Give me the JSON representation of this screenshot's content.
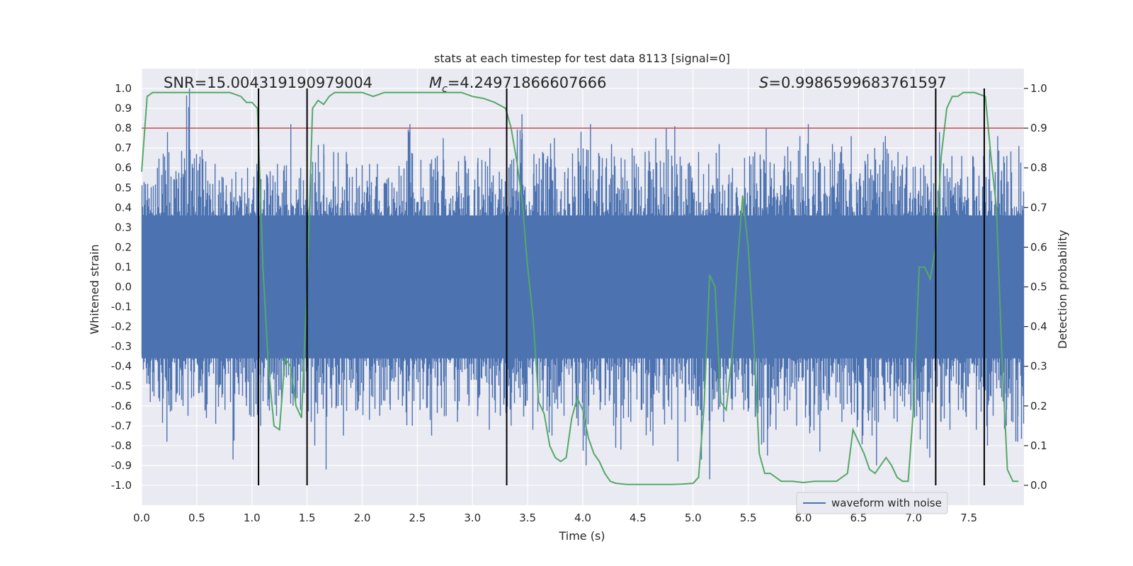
{
  "chart_data": {
    "type": "line",
    "title": "stats at each timestep for test data 8113 [signal=0]",
    "xlabel": "Time (s)",
    "ylabel": "Whitened strain",
    "y2label": "Detection probability",
    "xlim": [
      0.0,
      8.0
    ],
    "ylim": [
      -1.1,
      1.1
    ],
    "y2lim": [
      -0.05,
      1.05
    ],
    "xticks": [
      "0.0",
      "0.5",
      "1.0",
      "1.5",
      "2.0",
      "2.5",
      "3.0",
      "3.5",
      "4.0",
      "4.5",
      "5.0",
      "5.5",
      "6.0",
      "6.5",
      "7.0",
      "7.5"
    ],
    "yticks": [
      "-1.0",
      "-0.9",
      "-0.8",
      "-0.7",
      "-0.6",
      "-0.5",
      "-0.4",
      "-0.3",
      "-0.2",
      "-0.1",
      "0.0",
      "0.1",
      "0.2",
      "0.3",
      "0.4",
      "0.5",
      "0.6",
      "0.7",
      "0.8",
      "0.9",
      "1.0"
    ],
    "y2ticks": [
      "0.0",
      "0.1",
      "0.2",
      "0.3",
      "0.4",
      "0.5",
      "0.6",
      "0.7",
      "0.8",
      "0.9",
      "1.0"
    ],
    "annotations": {
      "snr": "SNR=15.004319190979004",
      "mc_symbol": "M",
      "mc_sub": "c",
      "mc_value": "=4.24971866607666",
      "s_symbol": "S",
      "s_value": "=0.9986599683761597"
    },
    "threshold": {
      "value": 0.9,
      "axis": "y2",
      "color": "#c44e52"
    },
    "event_lines": [
      1.06,
      1.5,
      3.31,
      7.2,
      7.64
    ],
    "waveform": {
      "name": "waveform with noise",
      "color": "#4c72b0",
      "description": "noise envelope sampled every 0.1 s",
      "t": [
        0.0,
        0.1,
        0.2,
        0.3,
        0.4,
        0.5,
        0.6,
        0.7,
        0.8,
        0.9,
        1.0,
        1.1,
        1.2,
        1.3,
        1.4,
        1.5,
        1.6,
        1.7,
        1.8,
        1.9,
        2.0,
        2.1,
        2.2,
        2.3,
        2.4,
        2.5,
        2.6,
        2.7,
        2.8,
        2.9,
        3.0,
        3.1,
        3.2,
        3.3,
        3.4,
        3.5,
        3.6,
        3.7,
        3.8,
        3.9,
        4.0,
        4.1,
        4.2,
        4.3,
        4.4,
        4.5,
        4.6,
        4.7,
        4.8,
        4.9,
        5.0,
        5.1,
        5.2,
        5.3,
        5.4,
        5.5,
        5.6,
        5.7,
        5.8,
        5.9,
        6.0,
        6.1,
        6.2,
        6.3,
        6.4,
        6.5,
        6.6,
        6.7,
        6.8,
        6.9,
        7.0,
        7.1,
        7.2,
        7.3,
        7.4,
        7.5,
        7.6,
        7.7,
        7.8,
        7.9
      ],
      "upper": [
        0.52,
        0.6,
        0.78,
        0.55,
        1.0,
        0.69,
        0.62,
        0.55,
        0.58,
        0.6,
        0.62,
        0.55,
        0.62,
        0.82,
        0.6,
        0.57,
        0.72,
        0.68,
        0.68,
        0.6,
        0.62,
        0.62,
        0.55,
        0.56,
        0.82,
        0.64,
        0.65,
        0.75,
        0.58,
        0.66,
        0.65,
        0.7,
        0.58,
        0.64,
        0.87,
        0.67,
        0.68,
        0.75,
        0.6,
        0.7,
        0.82,
        0.66,
        0.72,
        0.65,
        0.7,
        0.68,
        0.75,
        0.8,
        0.81,
        0.62,
        0.68,
        0.62,
        0.72,
        0.6,
        0.65,
        0.68,
        0.8,
        0.62,
        0.66,
        0.76,
        0.82,
        0.65,
        0.72,
        0.68,
        0.76,
        0.63,
        0.7,
        0.76,
        0.68,
        0.66,
        0.6,
        0.66,
        0.78,
        0.66,
        0.66,
        0.66,
        0.66,
        0.76,
        0.66,
        0.71
      ],
      "lower": [
        -0.58,
        -0.56,
        -0.78,
        -0.6,
        -0.65,
        -0.62,
        -0.69,
        -0.62,
        -0.87,
        -0.6,
        -0.7,
        -0.6,
        -0.65,
        -0.6,
        -0.62,
        -0.68,
        -0.92,
        -0.6,
        -0.75,
        -0.62,
        -0.67,
        -0.65,
        -0.62,
        -0.6,
        -0.7,
        -0.62,
        -0.75,
        -0.65,
        -0.68,
        -0.6,
        -0.62,
        -0.72,
        -0.65,
        -0.7,
        -0.6,
        -0.72,
        -0.62,
        -0.75,
        -0.65,
        -0.7,
        -0.9,
        -0.62,
        -0.7,
        -0.82,
        -0.68,
        -0.62,
        -0.8,
        -0.6,
        -0.88,
        -0.68,
        -0.62,
        -0.97,
        -0.68,
        -0.62,
        -0.62,
        -0.65,
        -0.85,
        -0.72,
        -0.62,
        -0.7,
        -0.65,
        -0.83,
        -0.62,
        -0.68,
        -0.6,
        -0.75,
        -0.9,
        -0.62,
        -0.68,
        -0.62,
        -0.7,
        -0.86,
        -0.68,
        -0.72,
        -0.62,
        -0.72,
        -0.8,
        -0.65,
        -0.7,
        -0.78
      ]
    },
    "probability": {
      "color": "#55a868",
      "t": [
        0.0,
        0.05,
        0.1,
        0.2,
        0.3,
        0.4,
        0.5,
        0.6,
        0.7,
        0.8,
        0.9,
        0.95,
        1.0,
        1.05,
        1.1,
        1.15,
        1.2,
        1.25,
        1.3,
        1.35,
        1.4,
        1.45,
        1.5,
        1.55,
        1.6,
        1.65,
        1.7,
        1.75,
        1.8,
        1.9,
        2.0,
        2.1,
        2.2,
        2.3,
        2.4,
        2.5,
        2.6,
        2.7,
        2.8,
        2.9,
        3.0,
        3.1,
        3.2,
        3.3,
        3.35,
        3.4,
        3.45,
        3.5,
        3.55,
        3.6,
        3.65,
        3.7,
        3.75,
        3.8,
        3.85,
        3.9,
        3.95,
        4.0,
        4.05,
        4.1,
        4.15,
        4.2,
        4.25,
        4.3,
        4.4,
        4.5,
        4.6,
        4.7,
        4.8,
        4.9,
        5.0,
        5.05,
        5.1,
        5.15,
        5.2,
        5.25,
        5.3,
        5.35,
        5.4,
        5.45,
        5.5,
        5.55,
        5.6,
        5.65,
        5.7,
        5.8,
        5.9,
        6.0,
        6.1,
        6.2,
        6.3,
        6.35,
        6.4,
        6.45,
        6.5,
        6.55,
        6.6,
        6.65,
        6.7,
        6.75,
        6.8,
        6.85,
        6.9,
        6.95,
        7.0,
        7.05,
        7.1,
        7.15,
        7.2,
        7.25,
        7.3,
        7.35,
        7.4,
        7.45,
        7.5,
        7.55,
        7.6,
        7.65,
        7.7,
        7.75,
        7.8,
        7.85,
        7.9,
        7.95
      ],
      "p": [
        0.79,
        0.98,
        0.99,
        0.99,
        0.99,
        0.99,
        0.99,
        0.99,
        0.99,
        0.99,
        0.98,
        0.965,
        0.965,
        0.95,
        0.55,
        0.3,
        0.15,
        0.14,
        0.32,
        0.3,
        0.2,
        0.17,
        0.5,
        0.95,
        0.97,
        0.96,
        0.98,
        0.99,
        0.99,
        0.99,
        0.99,
        0.98,
        0.99,
        0.99,
        0.99,
        0.99,
        0.99,
        0.99,
        0.99,
        0.99,
        0.98,
        0.975,
        0.965,
        0.95,
        0.9,
        0.82,
        0.72,
        0.55,
        0.42,
        0.21,
        0.18,
        0.1,
        0.07,
        0.06,
        0.07,
        0.17,
        0.22,
        0.19,
        0.12,
        0.08,
        0.06,
        0.03,
        0.01,
        0.005,
        0.002,
        0.002,
        0.002,
        0.002,
        0.002,
        0.003,
        0.005,
        0.02,
        0.2,
        0.53,
        0.5,
        0.21,
        0.19,
        0.32,
        0.55,
        0.73,
        0.6,
        0.37,
        0.08,
        0.03,
        0.03,
        0.01,
        0.01,
        0.007,
        0.01,
        0.01,
        0.01,
        0.02,
        0.03,
        0.14,
        0.11,
        0.08,
        0.04,
        0.03,
        0.05,
        0.07,
        0.05,
        0.02,
        0.01,
        0.01,
        0.2,
        0.55,
        0.55,
        0.52,
        0.6,
        0.83,
        0.95,
        0.98,
        0.98,
        0.99,
        0.99,
        0.99,
        0.985,
        0.98,
        0.83,
        0.7,
        0.33,
        0.04,
        0.01,
        0.01,
        0.005,
        0.005
      ]
    }
  }
}
